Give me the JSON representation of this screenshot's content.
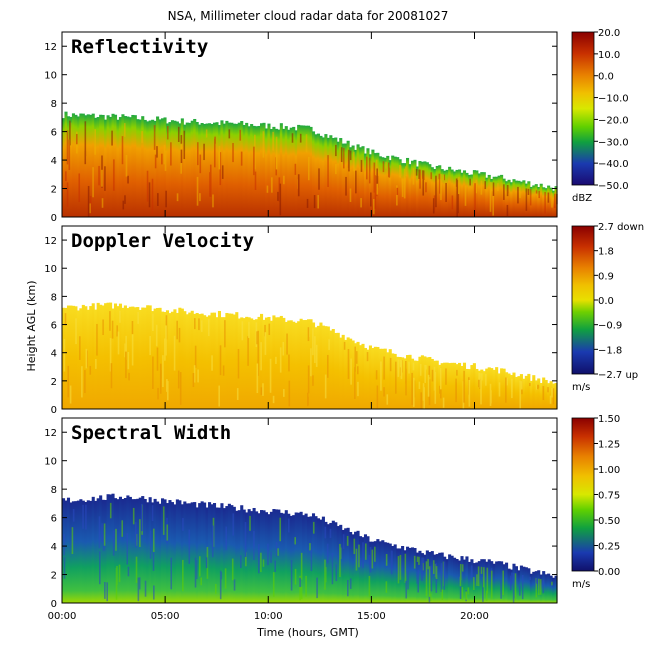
{
  "figure": {
    "title": "NSA, Millimeter cloud radar data for 20081027",
    "xlabel": "Time (hours, GMT)",
    "ylabel": "Height AGL (km)"
  },
  "chart_data": [
    {
      "type": "heatmap",
      "title": "Reflectivity",
      "xlim": [
        0,
        24
      ],
      "ylim": [
        0,
        13
      ],
      "x_ticks": [
        "00:00",
        "05:00",
        "10:00",
        "15:00",
        "20:00"
      ],
      "y_ticks": [
        "0",
        "2",
        "4",
        "6",
        "8",
        "10",
        "12"
      ],
      "colorbar": {
        "min": -50,
        "max": 20,
        "ticks": [
          "20.0",
          "10.0",
          "0.0",
          "−10.0",
          "−20.0",
          "−30.0",
          "−40.0",
          "−50.0"
        ],
        "unit": "dBZ"
      },
      "cloud_top_km": [
        [
          0,
          7.2
        ],
        [
          3,
          7.0
        ],
        [
          6,
          6.7
        ],
        [
          9,
          6.5
        ],
        [
          12,
          6.2
        ],
        [
          13,
          5.6
        ],
        [
          15,
          4.5
        ],
        [
          18,
          3.5
        ],
        [
          21,
          2.8
        ],
        [
          24,
          2.0
        ]
      ]
    },
    {
      "type": "heatmap",
      "title": "Doppler Velocity",
      "xlim": [
        0,
        24
      ],
      "ylim": [
        0,
        13
      ],
      "x_ticks": [
        "00:00",
        "05:00",
        "10:00",
        "15:00",
        "20:00"
      ],
      "y_ticks": [
        "0",
        "2",
        "4",
        "6",
        "8",
        "10",
        "12"
      ],
      "colorbar": {
        "min": -2.7,
        "max": 2.7,
        "ticks": [
          "2.7 down",
          "1.8",
          "0.9",
          "0.0",
          "−0.9",
          "−1.8",
          "−2.7 up"
        ],
        "unit": "m/s"
      },
      "cloud_top_km": [
        [
          0,
          7.2
        ],
        [
          3,
          7.4
        ],
        [
          6,
          6.9
        ],
        [
          9,
          6.6
        ],
        [
          12,
          6.2
        ],
        [
          13,
          5.6
        ],
        [
          15,
          4.3
        ],
        [
          18,
          3.4
        ],
        [
          21,
          2.8
        ],
        [
          24,
          1.8
        ]
      ]
    },
    {
      "type": "heatmap",
      "title": "Spectral Width",
      "xlim": [
        0,
        24
      ],
      "ylim": [
        0,
        13
      ],
      "x_ticks": [
        "00:00",
        "05:00",
        "10:00",
        "15:00",
        "20:00"
      ],
      "y_ticks": [
        "0",
        "2",
        "4",
        "6",
        "8",
        "10",
        "12"
      ],
      "colorbar": {
        "min": 0.0,
        "max": 1.5,
        "ticks": [
          "1.50",
          "1.25",
          "1.00",
          "0.75",
          "0.50",
          "0.25",
          "0.00"
        ],
        "unit": "m/s"
      },
      "cloud_top_km": [
        [
          0,
          7.2
        ],
        [
          3,
          7.5
        ],
        [
          6,
          7.0
        ],
        [
          9,
          6.6
        ],
        [
          12,
          6.2
        ],
        [
          13,
          5.6
        ],
        [
          15,
          4.4
        ],
        [
          18,
          3.4
        ],
        [
          21,
          2.8
        ],
        [
          24,
          1.8
        ]
      ]
    }
  ]
}
